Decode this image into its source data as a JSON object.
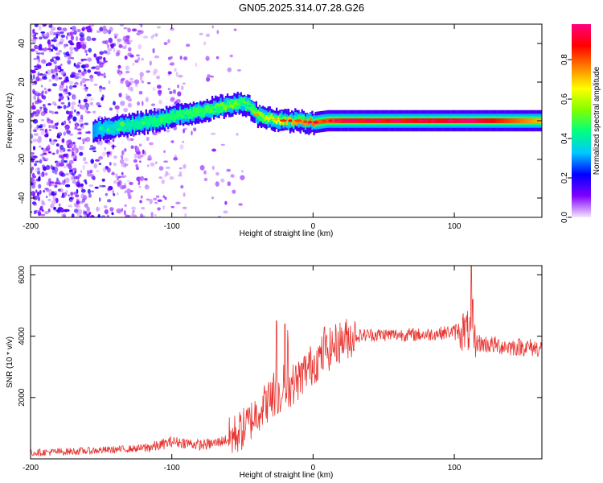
{
  "title": "GN05.2025.314.07.28.G26",
  "chart_data": [
    {
      "type": "heatmap",
      "name": "spectrogram",
      "xlabel": "Height of straight line (km)",
      "ylabel": "Frequency (Hz)",
      "xlim": [
        -200,
        162
      ],
      "ylim": [
        -50,
        50
      ],
      "xticks": [
        -200,
        -100,
        0,
        100
      ],
      "xtick_labels": [
        "-200",
        "-100",
        "0",
        "100"
      ],
      "yticks": [
        -40,
        -20,
        0,
        20,
        40
      ],
      "ytick_labels": [
        "-40",
        "-20",
        "0",
        "20",
        "40"
      ],
      "ridge": {
        "x": [
          -156,
          -140,
          -120,
          -100,
          -80,
          -60,
          -50,
          -45,
          -40,
          -30,
          -20,
          -10,
          0,
          10,
          20,
          60,
          100,
          110,
          162
        ],
        "y": [
          -5,
          -3,
          -1,
          2,
          5,
          8,
          9,
          7,
          3,
          1,
          0,
          0,
          -1,
          0,
          0,
          0,
          0,
          0,
          0
        ],
        "amplitude": [
          0.3,
          0.38,
          0.42,
          0.45,
          0.48,
          0.55,
          0.55,
          0.5,
          0.55,
          0.6,
          0.7,
          0.75,
          0.78,
          0.8,
          0.85,
          0.85,
          0.9,
          0.95,
          0.7
        ]
      },
      "colorbar": {
        "label": "Normalized spectral amplitude",
        "range": [
          0,
          0.98
        ],
        "ticks": [
          0.0,
          0.2,
          0.4,
          0.6,
          0.8
        ],
        "tick_labels": [
          "0.0",
          "0.2",
          "0.4",
          "0.6",
          "0.8"
        ],
        "colors": [
          "#f5e6ff",
          "#8000ff",
          "#0000ff",
          "#00c8ff",
          "#00ff80",
          "#80ff00",
          "#ffff00",
          "#ff8000",
          "#ff0000",
          "#ff0080"
        ]
      }
    },
    {
      "type": "line",
      "name": "snr",
      "xlabel": "Height of straight line (km)",
      "ylabel": "SNR (10 * v/v)",
      "xlim": [
        -200,
        162
      ],
      "ylim": [
        0,
        6300
      ],
      "xticks": [
        -200,
        -100,
        0,
        100
      ],
      "xtick_labels": [
        "-200",
        "-100",
        "0",
        "100"
      ],
      "yticks": [
        2000,
        4000,
        6000
      ],
      "ytick_labels": [
        "2000",
        "4000",
        "6000"
      ],
      "color": "#e8332f",
      "series": [
        {
          "name": "SNR",
          "x": [
            -200,
            -180,
            -160,
            -140,
            -120,
            -110,
            -100,
            -90,
            -80,
            -70,
            -60,
            -55,
            -50,
            -45,
            -40,
            -35,
            -30,
            -25,
            -20,
            -15,
            -10,
            -5,
            0,
            5,
            10,
            15,
            20,
            25,
            30,
            40,
            50,
            60,
            70,
            80,
            90,
            100,
            105,
            110,
            112,
            115,
            120,
            130,
            140,
            150,
            162
          ],
          "y": [
            200,
            230,
            260,
            300,
            350,
            420,
            560,
            520,
            450,
            500,
            650,
            800,
            950,
            1200,
            1500,
            1750,
            1950,
            2100,
            2250,
            2400,
            2600,
            2900,
            3100,
            3300,
            3500,
            3700,
            3850,
            3950,
            4000,
            4050,
            4050,
            4050,
            4050,
            4050,
            4100,
            4150,
            4200,
            4150,
            4000,
            3800,
            3750,
            3700,
            3650,
            3650,
            3600
          ]
        }
      ],
      "spikes": {
        "x": [
          -26,
          -20,
          -18,
          8,
          112,
          113
        ],
        "y": [
          4500,
          4400,
          4200,
          4300,
          6300,
          5200
        ]
      }
    }
  ]
}
